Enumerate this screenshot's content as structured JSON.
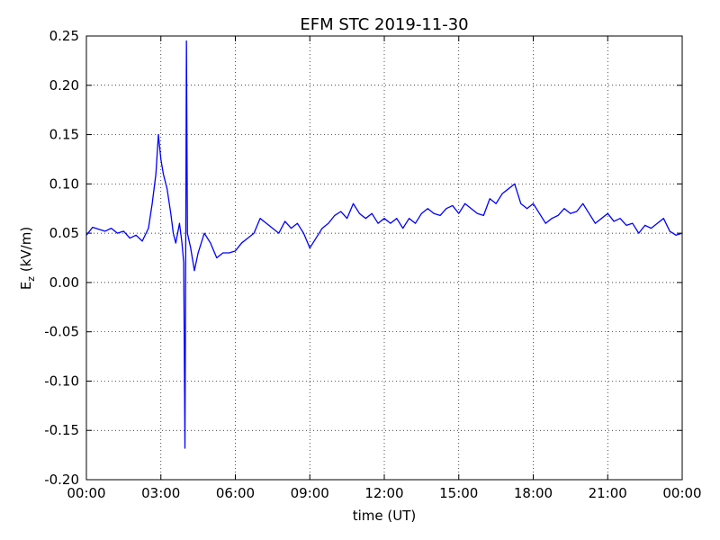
{
  "chart_data": {
    "type": "line",
    "title": "EFM STC    2019-11-30",
    "x_label": "time (UT)",
    "y_label": {
      "main": "E",
      "sub": "z",
      "unit": " (kV/m)"
    },
    "xlim": [
      0,
      24
    ],
    "xticks": [
      {
        "value": 0,
        "label": "00:00"
      },
      {
        "value": 3,
        "label": "03:00"
      },
      {
        "value": 6,
        "label": "06:00"
      },
      {
        "value": 9,
        "label": "09:00"
      },
      {
        "value": 12,
        "label": "12:00"
      },
      {
        "value": 15,
        "label": "15:00"
      },
      {
        "value": 18,
        "label": "18:00"
      },
      {
        "value": 21,
        "label": "21:00"
      },
      {
        "value": 24,
        "label": "00:00"
      }
    ],
    "ylim": [
      -0.2,
      0.25
    ],
    "yticks": [
      {
        "value": -0.2,
        "label": "-0.20"
      },
      -0.15,
      {
        "value": -0.1,
        "label": "-0.10"
      },
      -0.05,
      {
        "value": 0,
        "label": "0.00"
      },
      0.05,
      {
        "value": 0.1,
        "label": "0.10"
      },
      0.15,
      {
        "value": 0.2,
        "label": "0.20"
      },
      0.25
    ],
    "grid": true,
    "series": [
      {
        "color": "#0000ff",
        "x": [
          0,
          0.25,
          0.5,
          0.75,
          1.0,
          1.25,
          1.5,
          1.75,
          2.0,
          2.25,
          2.5,
          2.65,
          2.8,
          2.9,
          3.0,
          3.1,
          3.25,
          3.4,
          3.5,
          3.6,
          3.75,
          3.85,
          3.92,
          3.97,
          4.0,
          4.03,
          4.07,
          4.2,
          4.35,
          4.5,
          4.75,
          5.0,
          5.25,
          5.5,
          5.75,
          6.0,
          6.25,
          6.5,
          6.75,
          7.0,
          7.25,
          7.5,
          7.75,
          8.0,
          8.25,
          8.5,
          8.75,
          9.0,
          9.25,
          9.5,
          9.75,
          10.0,
          10.25,
          10.5,
          10.75,
          11.0,
          11.25,
          11.5,
          11.75,
          12.0,
          12.25,
          12.5,
          12.75,
          13.0,
          13.25,
          13.5,
          13.75,
          14.0,
          14.25,
          14.5,
          14.75,
          15.0,
          15.25,
          15.5,
          15.75,
          16.0,
          16.25,
          16.5,
          16.75,
          17.0,
          17.25,
          17.5,
          17.75,
          18.0,
          18.25,
          18.5,
          18.75,
          19.0,
          19.25,
          19.5,
          19.75,
          20.0,
          20.25,
          20.5,
          20.75,
          21.0,
          21.25,
          21.5,
          21.75,
          22.0,
          22.25,
          22.5,
          22.75,
          23.0,
          23.25,
          23.5,
          23.75,
          24.0
        ],
        "values": [
          0.048,
          0.056,
          0.054,
          0.052,
          0.055,
          0.05,
          0.052,
          0.045,
          0.048,
          0.042,
          0.055,
          0.08,
          0.11,
          0.15,
          0.125,
          0.11,
          0.095,
          0.07,
          0.05,
          0.04,
          0.06,
          0.04,
          0.02,
          -0.168,
          0.02,
          0.245,
          0.05,
          0.035,
          0.012,
          0.03,
          0.05,
          0.04,
          0.025,
          0.03,
          0.03,
          0.032,
          0.04,
          0.045,
          0.05,
          0.065,
          0.06,
          0.055,
          0.05,
          0.062,
          0.055,
          0.06,
          0.05,
          0.035,
          0.045,
          0.055,
          0.06,
          0.068,
          0.072,
          0.065,
          0.08,
          0.07,
          0.065,
          0.07,
          0.06,
          0.065,
          0.06,
          0.065,
          0.055,
          0.065,
          0.06,
          0.07,
          0.075,
          0.07,
          0.068,
          0.075,
          0.078,
          0.07,
          0.08,
          0.075,
          0.07,
          0.068,
          0.085,
          0.08,
          0.09,
          0.095,
          0.1,
          0.08,
          0.075,
          0.08,
          0.07,
          0.06,
          0.065,
          0.068,
          0.075,
          0.07,
          0.072,
          0.08,
          0.07,
          0.06,
          0.065,
          0.07,
          0.062,
          0.065,
          0.058,
          0.06,
          0.05,
          0.058,
          0.055,
          0.06,
          0.065,
          0.052,
          0.048,
          0.05
        ]
      }
    ]
  }
}
